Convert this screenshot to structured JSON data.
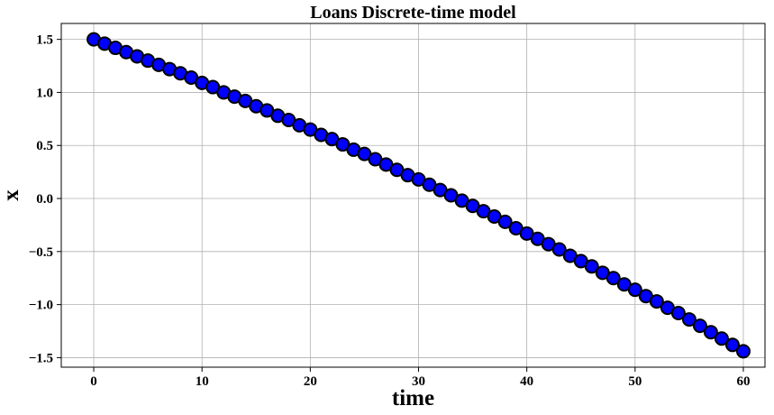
{
  "chart_data": {
    "type": "scatter",
    "title": "Loans Discrete-time model",
    "xlabel": "time",
    "ylabel": "x",
    "xlim": [
      -3,
      62
    ],
    "ylim": [
      -1.59,
      1.65
    ],
    "xticks": [
      0,
      10,
      20,
      30,
      40,
      50,
      60
    ],
    "xtick_labels": [
      "0",
      "10",
      "20",
      "30",
      "40",
      "50",
      "60"
    ],
    "yticks": [
      1.5,
      1.0,
      0.5,
      0.0,
      -0.5,
      -1.0,
      -1.5
    ],
    "ytick_labels": [
      "1.5",
      "1.0",
      "0.5",
      "0.0",
      "−0.5",
      "−1.0",
      "−1.5"
    ],
    "grid": true,
    "marker_color": "#0000ff",
    "marker_edge_color": "#000000",
    "series": [
      {
        "x": [
          0,
          1,
          2,
          3,
          4,
          5,
          6,
          7,
          8,
          9,
          10,
          11,
          12,
          13,
          14,
          15,
          16,
          17,
          18,
          19,
          20,
          21,
          22,
          23,
          24,
          25,
          26,
          27,
          28,
          29,
          30,
          31,
          32,
          33,
          34,
          35,
          36,
          37,
          38,
          39,
          40,
          41,
          42,
          43,
          44,
          45,
          46,
          47,
          48,
          49,
          50,
          51,
          52,
          53,
          54,
          55,
          56,
          57,
          58,
          59,
          60
        ],
        "y": [
          1.5,
          1.46,
          1.42,
          1.38,
          1.34,
          1.3,
          1.26,
          1.22,
          1.18,
          1.14,
          1.09,
          1.05,
          1.0,
          0.96,
          0.92,
          0.87,
          0.83,
          0.78,
          0.74,
          0.69,
          0.65,
          0.6,
          0.56,
          0.51,
          0.46,
          0.42,
          0.37,
          0.32,
          0.27,
          0.22,
          0.18,
          0.13,
          0.08,
          0.03,
          -0.02,
          -0.07,
          -0.12,
          -0.17,
          -0.22,
          -0.28,
          -0.33,
          -0.38,
          -0.43,
          -0.48,
          -0.54,
          -0.59,
          -0.64,
          -0.7,
          -0.75,
          -0.81,
          -0.86,
          -0.92,
          -0.97,
          -1.03,
          -1.08,
          -1.14,
          -1.2,
          -1.26,
          -1.32,
          -1.38,
          -1.44
        ]
      }
    ]
  }
}
